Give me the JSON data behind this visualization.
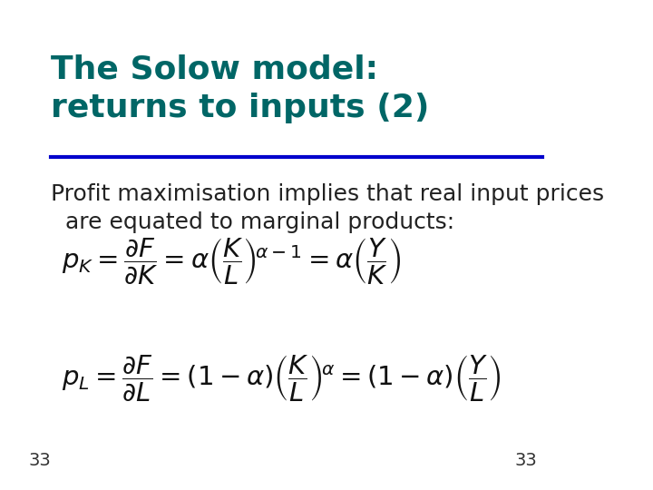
{
  "title_line1": "The Solow model:",
  "title_line2": "returns to inputs (2)",
  "title_color": "#006666",
  "title_fontsize": 26,
  "title_bold": true,
  "separator_color": "#0000CC",
  "separator_linewidth": 3,
  "body_text": "Profit maximisation implies that real input prices\n  are equated to marginal products:",
  "body_fontsize": 18,
  "body_color": "#222222",
  "eq_fontsize": 21,
  "eq_color": "#111111",
  "page_number": "33",
  "page_number_fontsize": 14,
  "page_number_color": "#333333",
  "bg_color": "#ffffff",
  "left_margin_number": "33",
  "fig_width": 7.2,
  "fig_height": 5.4
}
